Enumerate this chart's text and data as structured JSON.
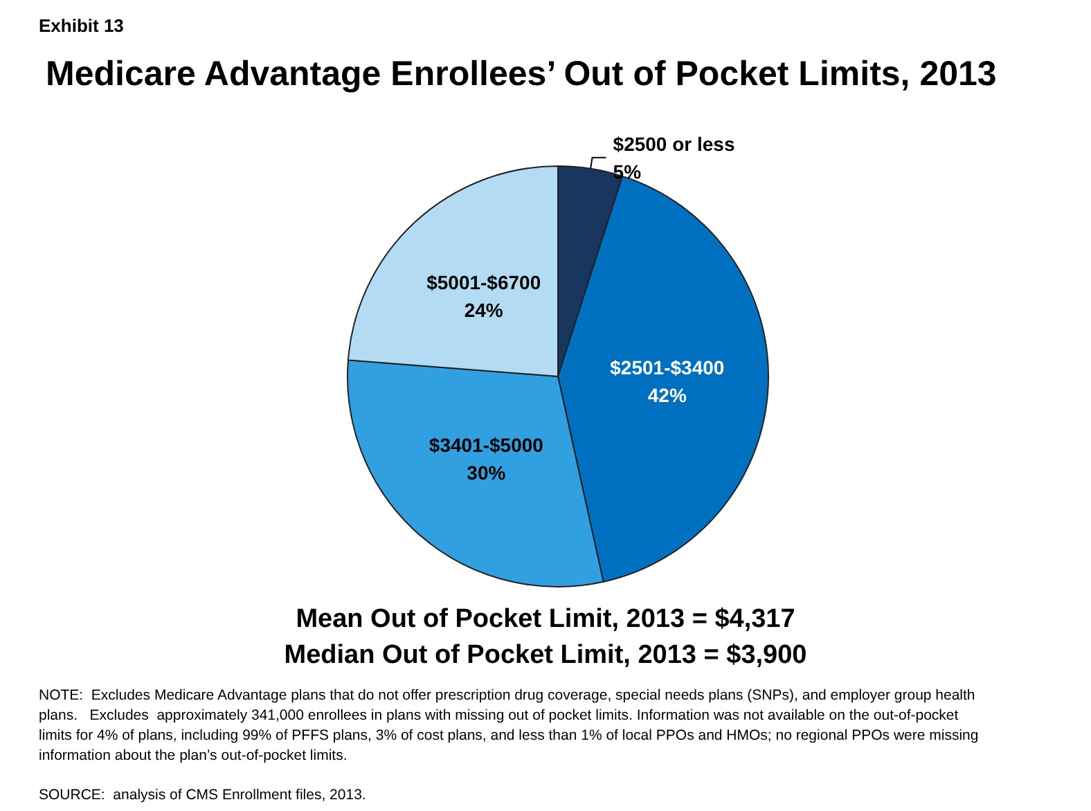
{
  "chart_data": {
    "type": "pie",
    "title": "Medicare Advantage Enrollees’ Out of Pocket Limits, 2013",
    "categories": [
      "$2500 or less",
      "$2501-$3400",
      "$3401-$5000",
      "$5001-$6700"
    ],
    "values": [
      5,
      42,
      30,
      24
    ],
    "value_labels": [
      "5%",
      "42%",
      "30%",
      "24%"
    ],
    "colors": [
      "#17375e",
      "#0070c0",
      "#30a0e0",
      "#b3dcf4"
    ],
    "legend": false,
    "annotations": [
      "Exhibit 13",
      "Mean Out of Pocket Limit, 2013 = $4,317",
      "Median Out of Pocket Limit, 2013 = $3,900",
      "NOTE:  Excludes Medicare Advantage plans that do not offer prescription drug coverage, special needs plans (SNPs), and employer group health plans.   Excludes  approximately 341,000 enrollees in plans with missing out of pocket limits. Information was not available on the out-of-pocket limits for 4% of plans, including 99% of PFFS plans, 3% of cost plans, and less than 1% of local PPOs and HMOs; no regional PPOs were missing information about the plan’s out-of-pocket limits.",
      "SOURCE:  analysis of CMS Enrollment files, 2013."
    ]
  }
}
